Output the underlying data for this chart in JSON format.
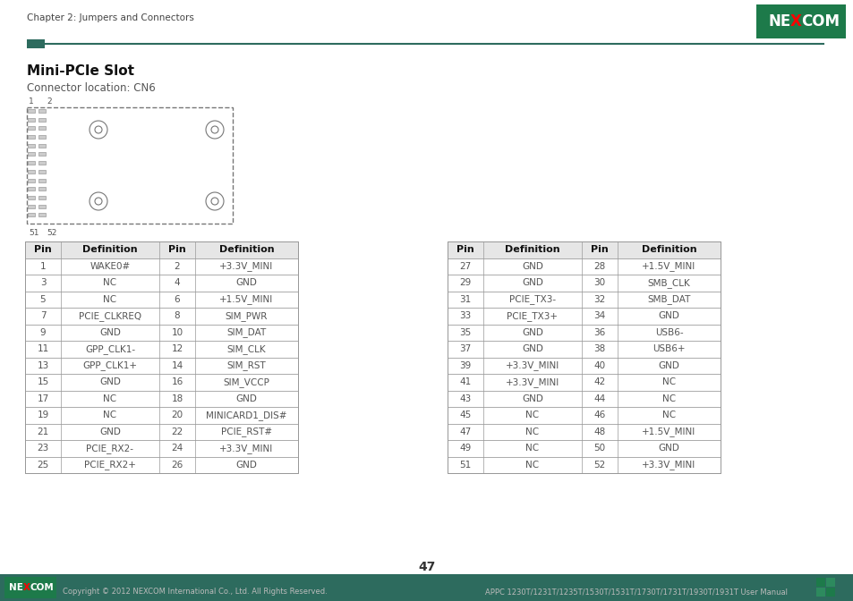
{
  "header_text": "Chapter 2: Jumpers and Connectors",
  "title": "Mini-PCIe Slot",
  "subtitle": "Connector location: CN6",
  "page_number": "47",
  "footer_left": "Copyright © 2012 NEXCOM International Co., Ltd. All Rights Reserved.",
  "footer_right": "APPC 1230T/1231T/1235T/1530T/1531T/1730T/1731T/1930T/1931T User Manual",
  "table1_headers": [
    "Pin",
    "Definition",
    "Pin",
    "Definition"
  ],
  "table1_data": [
    [
      "1",
      "WAKE0#",
      "2",
      "+3.3V_MINI"
    ],
    [
      "3",
      "NC",
      "4",
      "GND"
    ],
    [
      "5",
      "NC",
      "6",
      "+1.5V_MINI"
    ],
    [
      "7",
      "PCIE_CLKREQ",
      "8",
      "SIM_PWR"
    ],
    [
      "9",
      "GND",
      "10",
      "SIM_DAT"
    ],
    [
      "11",
      "GPP_CLK1-",
      "12",
      "SIM_CLK"
    ],
    [
      "13",
      "GPP_CLK1+",
      "14",
      "SIM_RST"
    ],
    [
      "15",
      "GND",
      "16",
      "SIM_VCCP"
    ],
    [
      "17",
      "NC",
      "18",
      "GND"
    ],
    [
      "19",
      "NC",
      "20",
      "MINICARD1_DIS#"
    ],
    [
      "21",
      "GND",
      "22",
      "PCIE_RST#"
    ],
    [
      "23",
      "PCIE_RX2-",
      "24",
      "+3.3V_MINI"
    ],
    [
      "25",
      "PCIE_RX2+",
      "26",
      "GND"
    ]
  ],
  "table2_headers": [
    "Pin",
    "Definition",
    "Pin",
    "Definition"
  ],
  "table2_data": [
    [
      "27",
      "GND",
      "28",
      "+1.5V_MINI"
    ],
    [
      "29",
      "GND",
      "30",
      "SMB_CLK"
    ],
    [
      "31",
      "PCIE_TX3-",
      "32",
      "SMB_DAT"
    ],
    [
      "33",
      "PCIE_TX3+",
      "34",
      "GND"
    ],
    [
      "35",
      "GND",
      "36",
      "USB6-"
    ],
    [
      "37",
      "GND",
      "38",
      "USB6+"
    ],
    [
      "39",
      "+3.3V_MINI",
      "40",
      "GND"
    ],
    [
      "41",
      "+3.3V_MINI",
      "42",
      "NC"
    ],
    [
      "43",
      "GND",
      "44",
      "NC"
    ],
    [
      "45",
      "NC",
      "46",
      "NC"
    ],
    [
      "47",
      "NC",
      "48",
      "+1.5V_MINI"
    ],
    [
      "49",
      "NC",
      "50",
      "GND"
    ],
    [
      "51",
      "NC",
      "52",
      "+3.3V_MINI"
    ]
  ],
  "header_bar_color": "#2d6b5e",
  "table_border_color": "#999999",
  "nexcom_green": "#1d7a4a",
  "footer_bar_color": "#2d6b5e",
  "bg_color": "#ffffff",
  "text_color": "#555555"
}
